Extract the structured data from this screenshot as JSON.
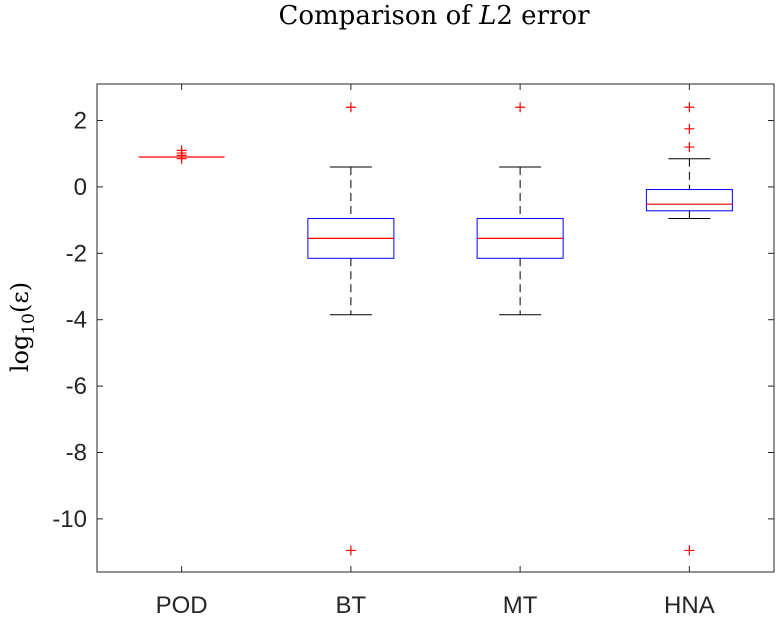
{
  "chart_data": {
    "type": "box",
    "title": "Comparison of L2 error",
    "title_parts": [
      "Comparison of ",
      "L",
      "2",
      " error"
    ],
    "xlabel": "",
    "ylabel_base": "log",
    "ylabel_sub": "10",
    "ylabel_arg": "(ε)",
    "ylim": [
      -11.6,
      3.1
    ],
    "yticks": [
      2,
      0,
      -2,
      -4,
      -6,
      -8,
      -10
    ],
    "ytick_labels": [
      "2",
      "0",
      "-2",
      "-4",
      "-6",
      "-8",
      "-10"
    ],
    "grid": false,
    "categories": [
      "POD",
      "BT",
      "MT",
      "HNA"
    ],
    "boxes": [
      {
        "name": "POD",
        "whisker_low": 0.9,
        "q1": 0.9,
        "median": 0.9,
        "q3": 0.9,
        "whisker_high": 0.9,
        "outliers": [
          0.85,
          0.95,
          1.02,
          1.1
        ]
      },
      {
        "name": "BT",
        "whisker_low": -3.85,
        "q1": -2.15,
        "median": -1.55,
        "q3": -0.95,
        "whisker_high": 0.6,
        "outliers": [
          2.4,
          -10.95
        ]
      },
      {
        "name": "MT",
        "whisker_low": -3.85,
        "q1": -2.15,
        "median": -1.55,
        "q3": -0.95,
        "whisker_high": 0.6,
        "outliers": [
          2.4
        ]
      },
      {
        "name": "HNA",
        "whisker_low": -0.95,
        "q1": -0.72,
        "median": -0.52,
        "q3": -0.08,
        "whisker_high": 0.85,
        "outliers": [
          2.4,
          1.75,
          1.2,
          -10.95
        ]
      }
    ],
    "colors": {
      "box": "#0000ff",
      "median": "#ff0000",
      "whisker": "#000000",
      "outlier": "#ff0000",
      "axis": "#262626"
    }
  }
}
